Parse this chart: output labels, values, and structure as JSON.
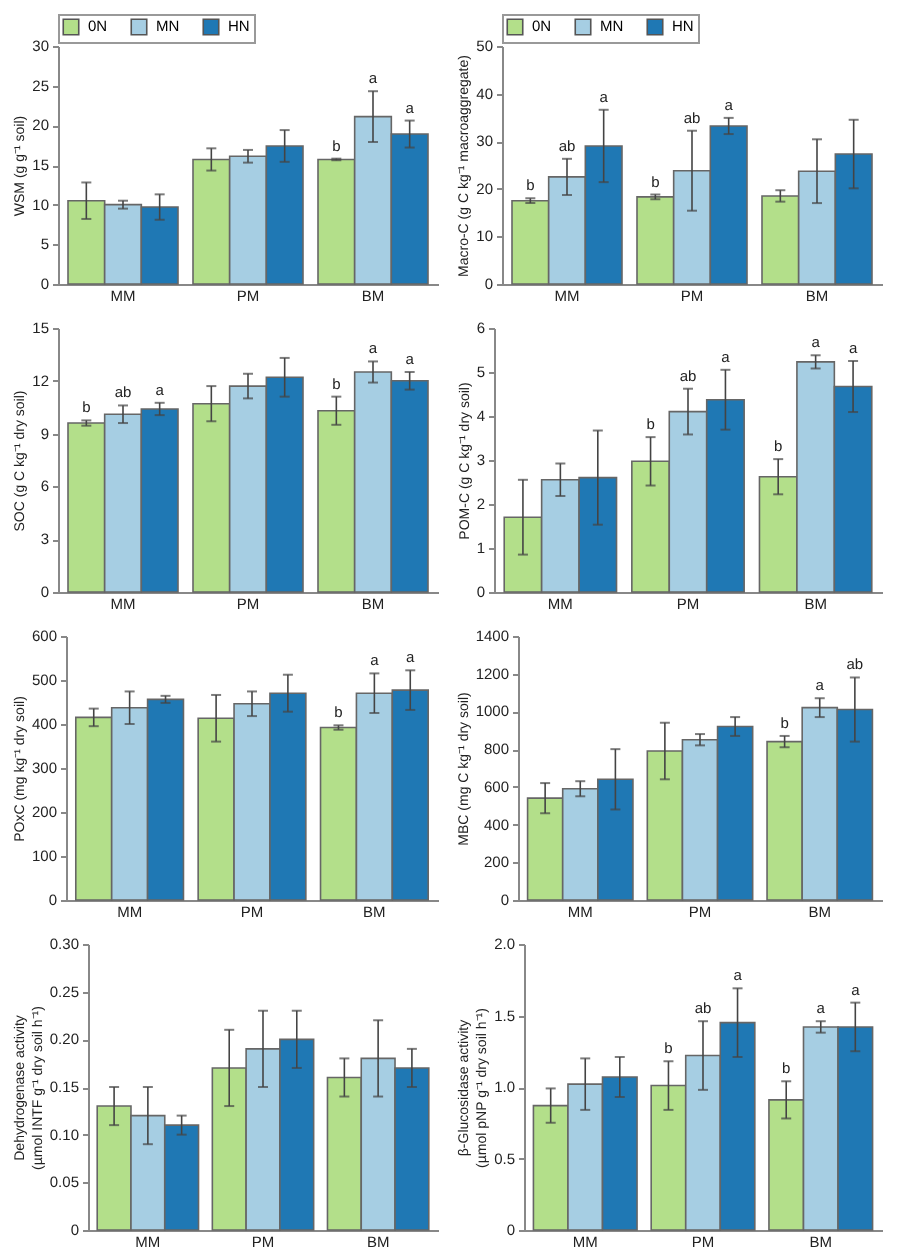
{
  "chart_data": [
    {
      "type": "bar",
      "ylabel": "WSM (g g⁻¹ soil)",
      "categories": [
        "MM",
        "PM",
        "BM"
      ],
      "ylim": [
        0,
        30
      ],
      "yticks": [
        0,
        5,
        10,
        15,
        20,
        25,
        30
      ],
      "grid": false,
      "legend": "top",
      "series": [
        {
          "name": "0N",
          "color": "#b3df8a",
          "values": [
            10.5,
            15.7,
            15.7
          ],
          "errors": [
            2.3,
            1.4,
            0.1
          ],
          "value_labels": [
            null,
            null,
            "b"
          ]
        },
        {
          "name": "MN",
          "color": "#a6cee3",
          "values": [
            10.0,
            16.1,
            21.1
          ],
          "errors": [
            0.5,
            0.8,
            3.2
          ],
          "value_labels": [
            null,
            null,
            "a"
          ]
        },
        {
          "name": "HN",
          "color": "#1f78b4",
          "values": [
            9.7,
            17.4,
            18.9
          ],
          "errors": [
            1.6,
            2.0,
            1.7
          ],
          "value_labels": [
            null,
            null,
            "a"
          ]
        }
      ]
    },
    {
      "type": "bar",
      "ylabel": "Macro-C (g C kg⁻¹ macroaggregate)",
      "categories": [
        "MM",
        "PM",
        "BM"
      ],
      "ylim": [
        0,
        50
      ],
      "yticks": [
        0,
        10,
        20,
        30,
        40,
        50
      ],
      "grid": false,
      "legend": "top",
      "series": [
        {
          "name": "0N",
          "color": "#b3df8a",
          "values": [
            17.5,
            18.3,
            18.5
          ],
          "errors": [
            0.5,
            0.5,
            1.2
          ],
          "value_labels": [
            "b",
            "b",
            null
          ]
        },
        {
          "name": "MN",
          "color": "#a6cee3",
          "values": [
            22.5,
            23.8,
            23.7
          ],
          "errors": [
            3.8,
            8.4,
            6.7
          ],
          "value_labels": [
            "ab",
            "ab",
            null
          ]
        },
        {
          "name": "HN",
          "color": "#1f78b4",
          "values": [
            29.0,
            33.2,
            27.3
          ],
          "errors": [
            7.6,
            1.7,
            7.2
          ],
          "value_labels": [
            "a",
            "a",
            null
          ]
        }
      ]
    },
    {
      "type": "bar",
      "ylabel": "SOC (g C kg⁻¹ dry soil)",
      "categories": [
        "MM",
        "PM",
        "BM"
      ],
      "ylim": [
        0,
        15
      ],
      "yticks": [
        0,
        3,
        6,
        9,
        12,
        15
      ],
      "grid": false,
      "series": [
        {
          "color": "#b3df8a",
          "values": [
            9.6,
            10.7,
            10.3
          ],
          "errors": [
            0.15,
            1.0,
            0.8
          ],
          "value_labels": [
            "b",
            null,
            "b"
          ]
        },
        {
          "color": "#a6cee3",
          "values": [
            10.1,
            11.7,
            12.5
          ],
          "errors": [
            0.5,
            0.7,
            0.6
          ],
          "value_labels": [
            "ab",
            null,
            "a"
          ]
        },
        {
          "color": "#1f78b4",
          "values": [
            10.4,
            12.2,
            12.0
          ],
          "errors": [
            0.35,
            1.1,
            0.5
          ],
          "value_labels": [
            "a",
            null,
            "a"
          ]
        }
      ]
    },
    {
      "type": "bar",
      "ylabel": "POM-C (g C kg⁻¹ dry soil)",
      "categories": [
        "MM",
        "PM",
        "BM"
      ],
      "ylim": [
        0,
        6
      ],
      "yticks": [
        0,
        1,
        2,
        3,
        4,
        5,
        6
      ],
      "grid": false,
      "series": [
        {
          "color": "#b3df8a",
          "values": [
            1.7,
            2.97,
            2.62
          ],
          "errors": [
            0.85,
            0.55,
            0.4
          ],
          "value_labels": [
            null,
            "b",
            "b"
          ]
        },
        {
          "color": "#a6cee3",
          "values": [
            2.55,
            4.1,
            5.23
          ],
          "errors": [
            0.37,
            0.52,
            0.15
          ],
          "value_labels": [
            null,
            "ab",
            "a"
          ]
        },
        {
          "color": "#1f78b4",
          "values": [
            2.6,
            4.37,
            4.67
          ],
          "errors": [
            1.07,
            0.68,
            0.58
          ],
          "value_labels": [
            null,
            "a",
            "a"
          ]
        }
      ]
    },
    {
      "type": "bar",
      "ylabel": "POxC (mg kg⁻¹ dry soil)",
      "categories": [
        "MM",
        "PM",
        "BM"
      ],
      "ylim": [
        0,
        600
      ],
      "yticks": [
        0,
        100,
        200,
        300,
        400,
        500,
        600
      ],
      "grid": false,
      "series": [
        {
          "color": "#b3df8a",
          "values": [
            415,
            413,
            392
          ],
          "errors": [
            20,
            53,
            5
          ],
          "value_labels": [
            null,
            null,
            "b"
          ]
        },
        {
          "color": "#a6cee3",
          "values": [
            437,
            446,
            470
          ],
          "errors": [
            37,
            28,
            45
          ],
          "value_labels": [
            null,
            null,
            "a"
          ]
        },
        {
          "color": "#1f78b4",
          "values": [
            456,
            470,
            477
          ],
          "errors": [
            8,
            42,
            45
          ],
          "value_labels": [
            null,
            null,
            "a"
          ]
        }
      ]
    },
    {
      "type": "bar",
      "ylabel": "MBC (mg C kg⁻¹ dry soil)",
      "categories": [
        "MM",
        "PM",
        "BM"
      ],
      "ylim": [
        0,
        1400
      ],
      "yticks": [
        0,
        200,
        400,
        600,
        800,
        1000,
        1200,
        1400
      ],
      "grid": false,
      "series": [
        {
          "color": "#b3df8a",
          "values": [
            540,
            790,
            840
          ],
          "errors": [
            80,
            150,
            30
          ],
          "value_labels": [
            null,
            null,
            "b"
          ]
        },
        {
          "color": "#a6cee3",
          "values": [
            590,
            850,
            1020
          ],
          "errors": [
            40,
            30,
            50
          ],
          "value_labels": [
            null,
            null,
            "a"
          ]
        },
        {
          "color": "#1f78b4",
          "values": [
            640,
            920,
            1010
          ],
          "errors": [
            160,
            50,
            170
          ],
          "value_labels": [
            null,
            null,
            "ab"
          ]
        }
      ]
    },
    {
      "type": "bar",
      "ylabel": "Dehydrogenase activity\n(µmol INTF g⁻¹ dry soil h⁻¹)",
      "categories": [
        "MM",
        "PM",
        "BM"
      ],
      "ylim": [
        0,
        0.3
      ],
      "yticks": [
        0,
        0.05,
        {
          "value": 0.1,
          "label": "0.10"
        },
        0.15,
        {
          "value": 0.2,
          "label": "0.20"
        },
        0.25,
        {
          "value": 0.3,
          "label": "0.30"
        }
      ],
      "grid": false,
      "series": [
        {
          "color": "#b3df8a",
          "values": [
            0.13,
            0.17,
            0.16
          ],
          "errors": [
            0.02,
            0.04,
            0.02
          ]
        },
        {
          "color": "#a6cee3",
          "values": [
            0.12,
            0.19,
            0.18
          ],
          "errors": [
            0.03,
            0.04,
            0.04
          ]
        },
        {
          "color": "#1f78b4",
          "values": [
            0.11,
            0.2,
            0.17
          ],
          "errors": [
            0.01,
            0.03,
            0.02
          ]
        }
      ]
    },
    {
      "type": "bar",
      "ylabel": "β-Glucosidase activity\n(µmol pNP g⁻¹ dry soil h⁻¹)",
      "categories": [
        "MM",
        "PM",
        "BM"
      ],
      "ylim": [
        0,
        2
      ],
      "yticks": [
        0,
        0.5,
        {
          "value": 1,
          "label": "1.0"
        },
        1.5,
        {
          "value": 2,
          "label": "2.0"
        }
      ],
      "grid": false,
      "series": [
        {
          "color": "#b3df8a",
          "values": [
            0.87,
            1.01,
            0.91
          ],
          "errors": [
            0.12,
            0.17,
            0.13
          ],
          "value_labels": [
            null,
            "b",
            "b"
          ]
        },
        {
          "color": "#a6cee3",
          "values": [
            1.02,
            1.22,
            1.42
          ],
          "errors": [
            0.18,
            0.24,
            0.04
          ],
          "value_labels": [
            null,
            "ab",
            "a"
          ]
        },
        {
          "color": "#1f78b4",
          "values": [
            1.07,
            1.45,
            1.42
          ],
          "errors": [
            0.14,
            0.24,
            0.17
          ],
          "value_labels": [
            null,
            "a",
            "a"
          ]
        }
      ]
    }
  ]
}
